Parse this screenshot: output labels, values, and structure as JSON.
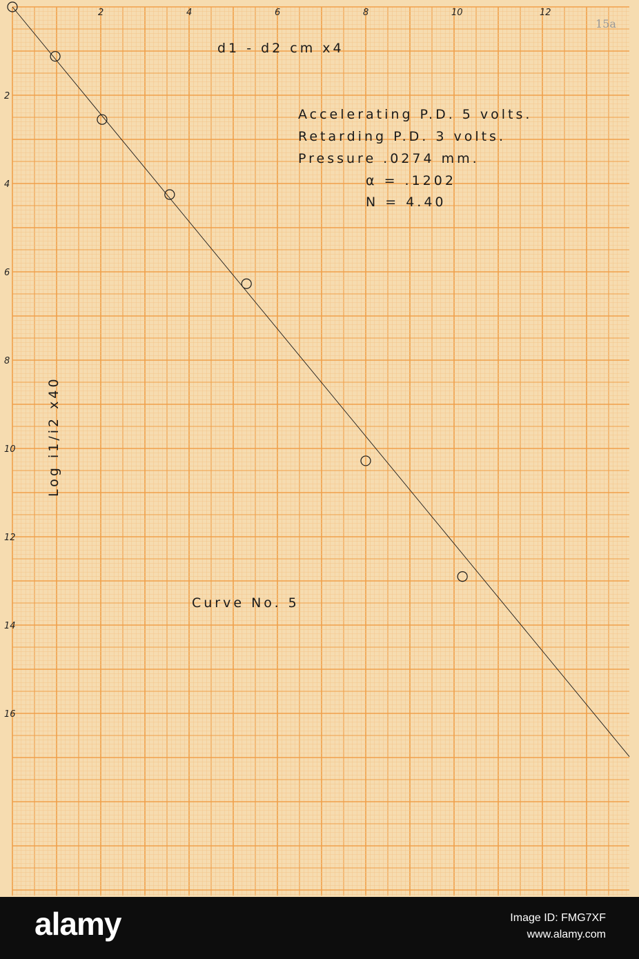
{
  "chart_data": {
    "type": "scatter",
    "title": "Curve No. 5",
    "xlabel": "d1 - d2   cm x4",
    "ylabel": "Log i1/i2 x40",
    "x_ticks": [
      "2",
      "4",
      "6",
      "8",
      "10",
      "12"
    ],
    "y_ticks": [
      "2",
      "4",
      "6",
      "8",
      "10",
      "12",
      "14",
      "16"
    ],
    "xlim": [
      0,
      14
    ],
    "ylim": [
      0,
      20
    ],
    "y_inverted": true,
    "grid": true,
    "points": [
      {
        "x": 0,
        "y": 0
      },
      {
        "x": 0.97,
        "y": 1.12
      },
      {
        "x": 2.03,
        "y": 2.55
      },
      {
        "x": 3.56,
        "y": 4.25
      },
      {
        "x": 5.3,
        "y": 6.27
      },
      {
        "x": 8.0,
        "y": 10.28
      },
      {
        "x": 10.19,
        "y": 12.9
      }
    ],
    "fit_line": {
      "x": [
        0,
        13.97
      ],
      "y": [
        0,
        16.98
      ]
    },
    "annotations": [
      "Accelerating P.D.   5  volts.",
      "Retarding P.D.   3  volts.",
      "Pressure   .0274   mm.",
      "α = .1202",
      "N = 4.40"
    ],
    "page_number": "15a",
    "colors": {
      "paper": "#f6dcb0",
      "grid_major": "#f0a04a",
      "grid_minor": "#f4c48a",
      "ink": "#1a1a1a"
    }
  },
  "footer": {
    "logo": "alamy",
    "image_id": "Image ID: FMG7XF",
    "site": "www.alamy.com"
  }
}
